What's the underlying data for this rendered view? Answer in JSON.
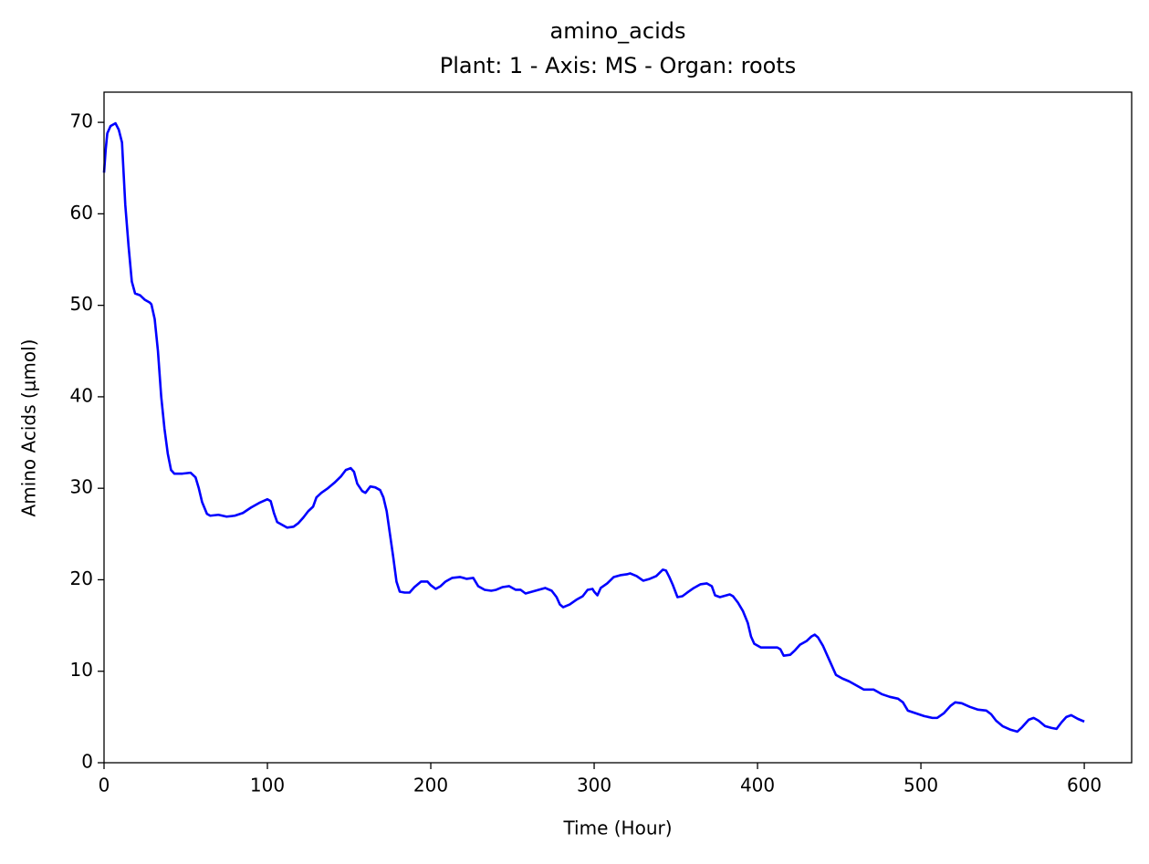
{
  "chart_data": {
    "type": "line",
    "title": "amino_acids",
    "subtitle": "Plant: 1 - Axis: MS - Organ: roots",
    "xlabel": "Time (Hour)",
    "ylabel": "Amino Acids (μmol)",
    "xlim": [
      0,
      629
    ],
    "ylim": [
      0,
      73.3
    ],
    "xticks": [
      0,
      100,
      200,
      300,
      400,
      500,
      600
    ],
    "yticks": [
      0,
      10,
      20,
      30,
      40,
      50,
      60,
      70
    ],
    "grid": false,
    "x": [
      0,
      1,
      2,
      4,
      7,
      9,
      11,
      13,
      15,
      17,
      19,
      22,
      25,
      28,
      29,
      31,
      33,
      35,
      37,
      39,
      41,
      43,
      48,
      53,
      56,
      58,
      60,
      63,
      65,
      70,
      75,
      80,
      85,
      90,
      95,
      100,
      102,
      104,
      106,
      109,
      112,
      116,
      119,
      122,
      125,
      128,
      130,
      133,
      137,
      141,
      145,
      148,
      151,
      153,
      155,
      158,
      160,
      163,
      166,
      169,
      171,
      173,
      175,
      177,
      179,
      181,
      184,
      187,
      190,
      194,
      198,
      200,
      203,
      206,
      209,
      213,
      218,
      222,
      226,
      229,
      233,
      237,
      240,
      244,
      248,
      252,
      255,
      258,
      262,
      266,
      270,
      274,
      277,
      279,
      281,
      285,
      289,
      293,
      296,
      299,
      300,
      302,
      304,
      308,
      312,
      316,
      320,
      322,
      326,
      330,
      334,
      338,
      342,
      344,
      346,
      348,
      351,
      354,
      357,
      361,
      365,
      369,
      372,
      374,
      377,
      381,
      383,
      385,
      388,
      391,
      394,
      396,
      398,
      402,
      407,
      412,
      414,
      416,
      420,
      423,
      426,
      430,
      433,
      435,
      437,
      440,
      443,
      445,
      448,
      452,
      456,
      460,
      465,
      471,
      476,
      481,
      486,
      489,
      492,
      497,
      502,
      507,
      510,
      514,
      518,
      521,
      525,
      530,
      535,
      540,
      543,
      546,
      550,
      555,
      559,
      562,
      566,
      569,
      572,
      576,
      580,
      583,
      586,
      589,
      592,
      596,
      600
    ],
    "series": [
      {
        "name": "amino_acids",
        "color": "#0000ff",
        "values": [
          64.5,
          67,
          68.8,
          69.6,
          69.9,
          69.2,
          67.8,
          61,
          56.5,
          52.6,
          51.3,
          51.1,
          50.6,
          50.3,
          50.1,
          48.5,
          45,
          40,
          36.5,
          33.8,
          32,
          31.6,
          31.6,
          31.7,
          31.2,
          30,
          28.5,
          27.2,
          27,
          27.1,
          26.9,
          27,
          27.3,
          27.9,
          28.4,
          28.8,
          28.6,
          27.3,
          26.3,
          26,
          25.7,
          25.8,
          26.2,
          26.8,
          27.5,
          28,
          29,
          29.5,
          30,
          30.6,
          31.3,
          32,
          32.2,
          31.8,
          30.5,
          29.7,
          29.5,
          30.2,
          30.1,
          29.8,
          29,
          27.5,
          25,
          22.5,
          19.8,
          18.7,
          18.6,
          18.6,
          19.2,
          19.8,
          19.8,
          19.4,
          19,
          19.3,
          19.8,
          20.2,
          20.3,
          20.1,
          20.2,
          19.3,
          18.9,
          18.8,
          18.9,
          19.2,
          19.3,
          18.9,
          18.9,
          18.5,
          18.7,
          18.9,
          19.1,
          18.8,
          18.1,
          17.3,
          17,
          17.3,
          17.8,
          18.2,
          18.9,
          19,
          18.7,
          18.3,
          19.1,
          19.6,
          20.3,
          20.5,
          20.6,
          20.7,
          20.4,
          19.9,
          20.1,
          20.4,
          21.1,
          21,
          20.3,
          19.5,
          18.1,
          18.2,
          18.6,
          19.1,
          19.5,
          19.6,
          19.3,
          18.3,
          18.1,
          18.3,
          18.4,
          18.2,
          17.5,
          16.6,
          15.3,
          13.8,
          13,
          12.6,
          12.6,
          12.6,
          12.4,
          11.7,
          11.8,
          12.3,
          12.9,
          13.3,
          13.8,
          14,
          13.7,
          12.8,
          11.6,
          10.8,
          9.6,
          9.2,
          8.9,
          8.5,
          8,
          8,
          7.5,
          7.2,
          7,
          6.6,
          5.7,
          5.4,
          5.1,
          4.9,
          4.9,
          5.4,
          6.2,
          6.6,
          6.5,
          6.1,
          5.8,
          5.7,
          5.3,
          4.6,
          4,
          3.6,
          3.4,
          3.9,
          4.7,
          4.9,
          4.6,
          4,
          3.8,
          3.7,
          4.4,
          5,
          5.2,
          4.8,
          4.5
        ]
      }
    ]
  }
}
